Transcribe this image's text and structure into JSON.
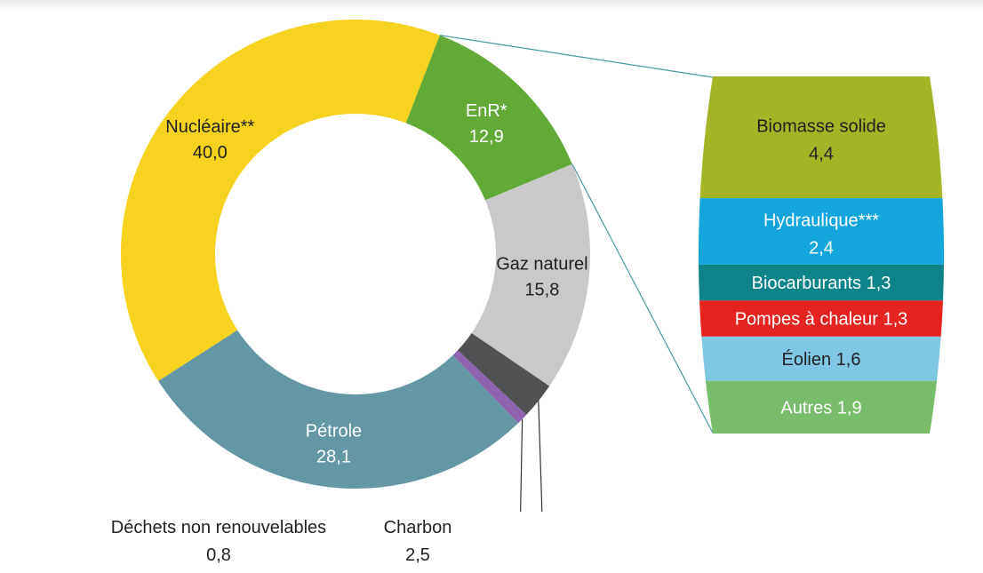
{
  "chart_data": {
    "type": "pie",
    "variant": "donut with breakdown bar",
    "unit": "%",
    "slices": [
      {
        "name": "Nucléaire**",
        "value": 40.0,
        "label": "40,0",
        "color": "#f7d21e",
        "text_color": "#222222"
      },
      {
        "name": "EnR*",
        "value": 12.9,
        "label": "12,9",
        "color": "#62aa35",
        "text_color": "#ffffff"
      },
      {
        "name": "Gaz naturel",
        "value": 15.8,
        "label": "15,8",
        "color": "#c9c9cb",
        "text_color": "#222222"
      },
      {
        "name": "Charbon",
        "value": 2.5,
        "label": "2,5",
        "color": "#505153",
        "text_color": "#222222"
      },
      {
        "name": "Déchets non renouvelables",
        "value": 0.8,
        "label": "0,8",
        "color": "#8e63b0",
        "text_color": "#222222"
      },
      {
        "name": "Pétrole",
        "value": 28.1,
        "label": "28,1",
        "color": "#6497a3",
        "text_color": "#ffffff"
      }
    ],
    "breakdown": {
      "parent": "EnR*",
      "items": [
        {
          "name": "Biomasse solide",
          "value": 4.4,
          "label": "4,4",
          "color": "#a3b526",
          "text_color": "#222222"
        },
        {
          "name": "Hydraulique***",
          "value": 2.4,
          "label": "2,4",
          "color": "#14a5dc",
          "text_color": "#ffffff"
        },
        {
          "name": "Biocarburants",
          "value": 1.3,
          "label": "1,3",
          "color": "#0e8489",
          "text_color": "#ffffff"
        },
        {
          "name": "Pompes à chaleur",
          "value": 1.3,
          "label": "1,3",
          "color": "#e5231f",
          "text_color": "#ffffff"
        },
        {
          "name": "Éolien",
          "value": 1.6,
          "label": "1,6",
          "color": "#7fc8e3",
          "text_color": "#222222"
        },
        {
          "name": "Autres",
          "value": 1.9,
          "label": "1,9",
          "color": "#78bd6a",
          "text_color": "#ffffff"
        }
      ]
    },
    "connector_color": "#4a9a9e"
  }
}
